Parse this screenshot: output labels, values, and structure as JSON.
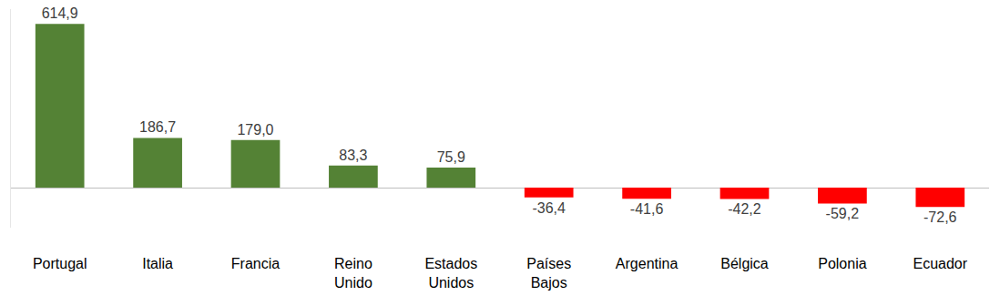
{
  "chart_data": {
    "type": "bar",
    "categories": [
      "Portugal",
      "Italia",
      "Francia",
      "Reino Unido",
      "Estados Unidos",
      "Países Bajos",
      "Argentina",
      "Bélgica",
      "Polonia",
      "Ecuador"
    ],
    "values": [
      614.9,
      186.7,
      179.0,
      83.3,
      75.9,
      -36.4,
      -41.6,
      -42.2,
      -59.2,
      -72.6
    ],
    "value_labels": [
      "614,9",
      "186,7",
      "179,0",
      "83,3",
      "75,9",
      "-36,4",
      "-41,6",
      "-42,2",
      "-59,2",
      "-72,6"
    ],
    "colors": [
      "#548235",
      "#548235",
      "#548235",
      "#548235",
      "#548235",
      "#ff0000",
      "#ff0000",
      "#ff0000",
      "#ff0000",
      "#ff0000"
    ],
    "ylim": [
      -150,
      670
    ],
    "data_labels": true,
    "tick_labels": "x",
    "grid": false
  }
}
